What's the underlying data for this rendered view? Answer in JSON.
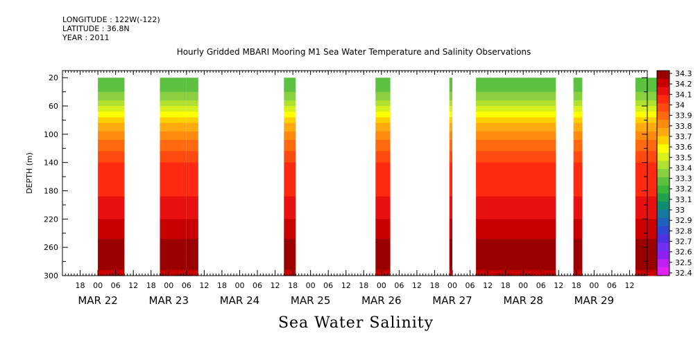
{
  "header": {
    "longitude": "LONGITUDE : 122W(-122)",
    "latitude": "LATITUDE : 36.8N",
    "year": "YEAR : 2011"
  },
  "chart_data": {
    "type": "heatmap",
    "title": "Hourly Gridded MBARI Mooring M1 Sea Water Temperature and Salinity Observations",
    "variable_label": "Sea Water Salinity",
    "ylabel": "DEPTH (m)",
    "ylim": [
      300,
      10
    ],
    "y_inverted": true,
    "yticks": [
      20,
      60,
      100,
      140,
      180,
      220,
      260,
      300
    ],
    "xlim": [
      "2011-03-21T12:00",
      "2011-03-29T18:00"
    ],
    "xticks_hours": [
      "18",
      "00",
      "06",
      "12",
      "18",
      "00",
      "06",
      "12",
      "18",
      "00",
      "06",
      "12",
      "18",
      "00",
      "06",
      "12",
      "18",
      "00",
      "06",
      "12",
      "18",
      "00",
      "06",
      "12",
      "18",
      "00",
      "06",
      "12",
      "18",
      "00",
      "06",
      "12"
    ],
    "x_date_labels": [
      "MAR 22",
      "MAR 23",
      "MAR 24",
      "MAR 25",
      "MAR 26",
      "MAR 27",
      "MAR 28",
      "MAR 29"
    ],
    "data_depth_range": [
      20,
      300
    ],
    "observation_periods": [
      {
        "start": "2011-03-22T00:00",
        "end": "2011-03-22T09:00"
      },
      {
        "start": "2011-03-22T21:00",
        "end": "2011-03-23T06:00"
      },
      {
        "start": "2011-03-23T06:00",
        "end": "2011-03-23T10:00"
      },
      {
        "start": "2011-03-24T15:00",
        "end": "2011-03-24T19:00"
      },
      {
        "start": "2011-03-25T22:00",
        "end": "2011-03-26T03:00"
      },
      {
        "start": "2011-03-26T23:00",
        "end": "2011-03-27T00:00"
      },
      {
        "start": "2011-03-27T08:00",
        "end": "2011-03-28T11:00"
      },
      {
        "start": "2011-03-28T17:00",
        "end": "2011-03-28T20:00"
      },
      {
        "start": "2011-03-29T14:00",
        "end": "2011-03-29T23:00"
      }
    ],
    "typical_profile": {
      "depths": [
        20,
        40,
        60,
        80,
        100,
        120,
        140,
        160,
        180,
        200,
        220,
        240,
        260,
        280,
        300
      ],
      "values": [
        33.25,
        33.3,
        33.45,
        33.65,
        33.8,
        33.9,
        34.0,
        34.05,
        34.05,
        34.1,
        34.15,
        34.2,
        34.25,
        34.25,
        34.2
      ]
    },
    "colorbar": {
      "levels": [
        "34.3",
        "34.2",
        "34.1",
        "34",
        "33.9",
        "33.8",
        "33.7",
        "33.6",
        "33.5",
        "33.4",
        "33.3",
        "33.2",
        "33.1",
        "33",
        "32.9",
        "32.8",
        "32.7",
        "32.6",
        "32.5",
        "32.4"
      ],
      "min": 32.4,
      "max": 34.3,
      "colors": [
        "#9a0000",
        "#c80000",
        "#e81010",
        "#ff2a10",
        "#ff4a10",
        "#ff6a10",
        "#ff8a10",
        "#ffaa10",
        "#ffd000",
        "#ffff00",
        "#d8f020",
        "#b0e030",
        "#88d040",
        "#5cc040",
        "#3cb43c",
        "#20a050",
        "#108c70",
        "#1878a0",
        "#2060c0",
        "#3048d0",
        "#5030e0",
        "#7030f0",
        "#9020f0",
        "#c020f0",
        "#e020f0"
      ]
    }
  }
}
